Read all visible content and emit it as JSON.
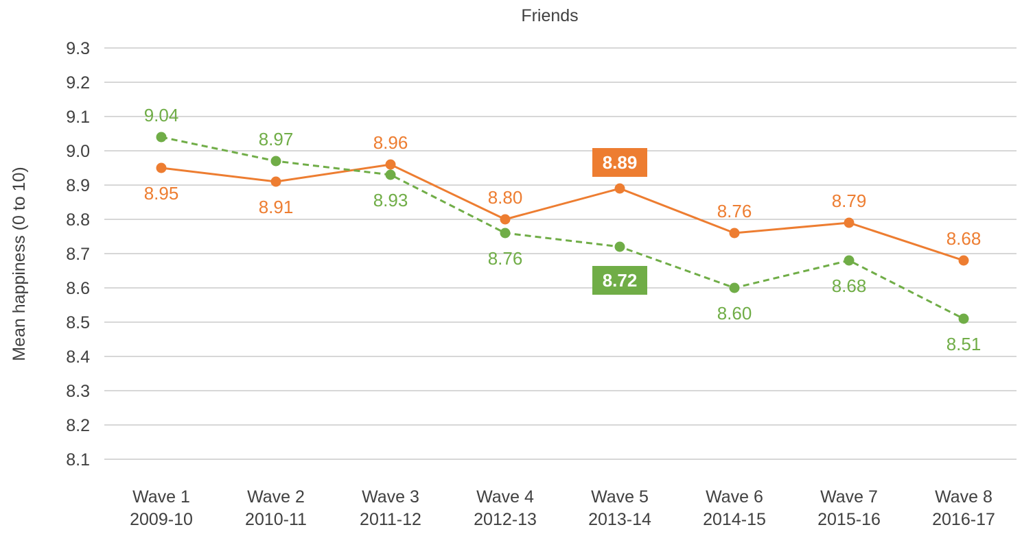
{
  "chart_data": {
    "type": "line",
    "title": "Friends",
    "xlabel": "",
    "ylabel": "Mean happiness (0 to 10)",
    "ylim": [
      8.1,
      9.3
    ],
    "yticks": [
      "9.3",
      "9.2",
      "9.1",
      "9.0",
      "8.9",
      "8.8",
      "8.7",
      "8.6",
      "8.5",
      "8.4",
      "8.3",
      "8.2",
      "8.1"
    ],
    "categories": [
      {
        "wave": "Wave 1",
        "years": "2009-10"
      },
      {
        "wave": "Wave 2",
        "years": "2010-11"
      },
      {
        "wave": "Wave 3",
        "years": "2011-12"
      },
      {
        "wave": "Wave 4",
        "years": "2012-13"
      },
      {
        "wave": "Wave 5",
        "years": "2013-14"
      },
      {
        "wave": "Wave 6",
        "years": "2014-15"
      },
      {
        "wave": "Wave 7",
        "years": "2015-16"
      },
      {
        "wave": "Wave 8",
        "years": "2016-17"
      }
    ],
    "grid": true,
    "legend": "none",
    "series": [
      {
        "color": "#ED7D31",
        "dashed": false,
        "values": [
          8.95,
          8.91,
          8.96,
          8.8,
          8.89,
          8.76,
          8.79,
          8.68
        ],
        "labels": [
          "8.95",
          "8.91",
          "8.96",
          "8.80",
          "8.89",
          "8.76",
          "8.79",
          "8.68"
        ],
        "highlight_index": 4
      },
      {
        "color": "#70AD47",
        "dashed": true,
        "values": [
          9.04,
          8.97,
          8.93,
          8.76,
          8.72,
          8.6,
          8.68,
          8.51
        ],
        "labels": [
          "9.04",
          "8.97",
          "8.93",
          "8.76",
          "8.72",
          "8.60",
          "8.68",
          "8.51"
        ],
        "highlight_index": 4
      }
    ]
  }
}
